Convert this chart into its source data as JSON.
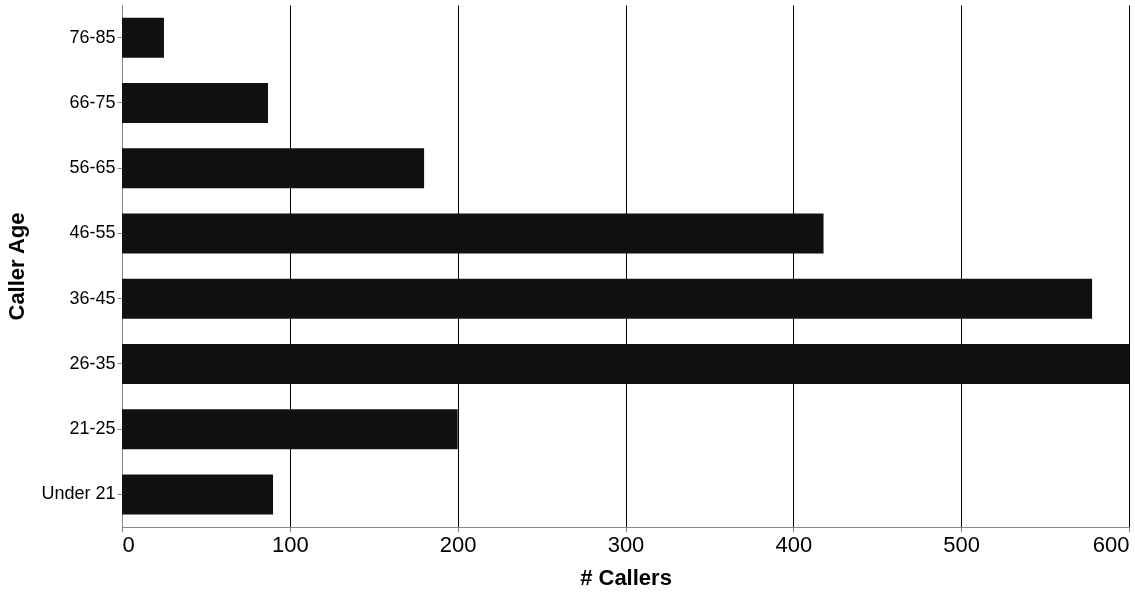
{
  "chart_data": {
    "type": "bar",
    "orientation": "horizontal",
    "xlabel": "# Callers",
    "ylabel": "Caller Age",
    "categories": [
      "76-85",
      "66-75",
      "56-65",
      "46-55",
      "36-45",
      "26-35",
      "21-25",
      "Under 21"
    ],
    "values": [
      25,
      87,
      180,
      418,
      578,
      600,
      200,
      90
    ],
    "color": "#111111",
    "xlim": [
      0,
      600
    ],
    "xticks": [
      0,
      100,
      200,
      300,
      400,
      500,
      600
    ],
    "grid": "x"
  }
}
